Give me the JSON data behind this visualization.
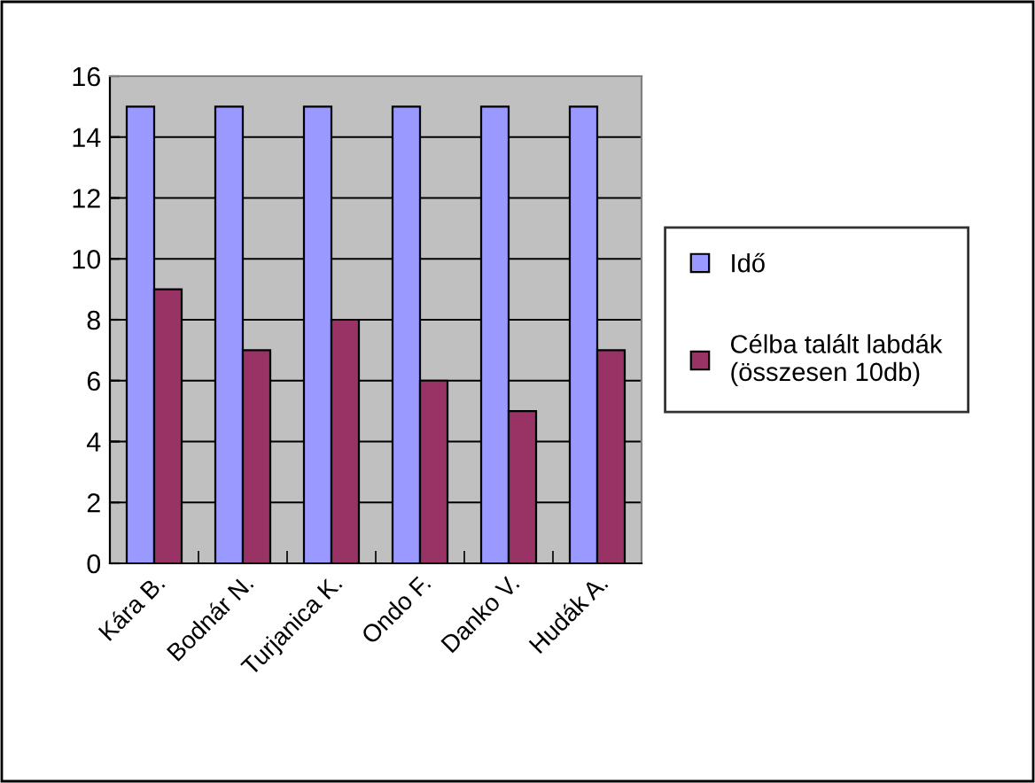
{
  "chart_data": {
    "type": "bar",
    "categories": [
      "Kára B.",
      "Bodnár N.",
      "Turjanica K.",
      "Ondo F.",
      "Danko V.",
      "Hudák A."
    ],
    "series": [
      {
        "name": "Idő",
        "color": "#9999ff",
        "values": [
          15,
          15,
          15,
          15,
          15,
          15
        ]
      },
      {
        "name": "Célba talált labdák\n(összesen 10db)",
        "color": "#993366",
        "values": [
          9,
          7,
          8,
          6,
          5,
          7
        ]
      }
    ],
    "ylim": [
      0,
      16
    ],
    "yticks": [
      0,
      2,
      4,
      6,
      8,
      10,
      12,
      14,
      16
    ],
    "grid": "y",
    "legend": "right"
  }
}
